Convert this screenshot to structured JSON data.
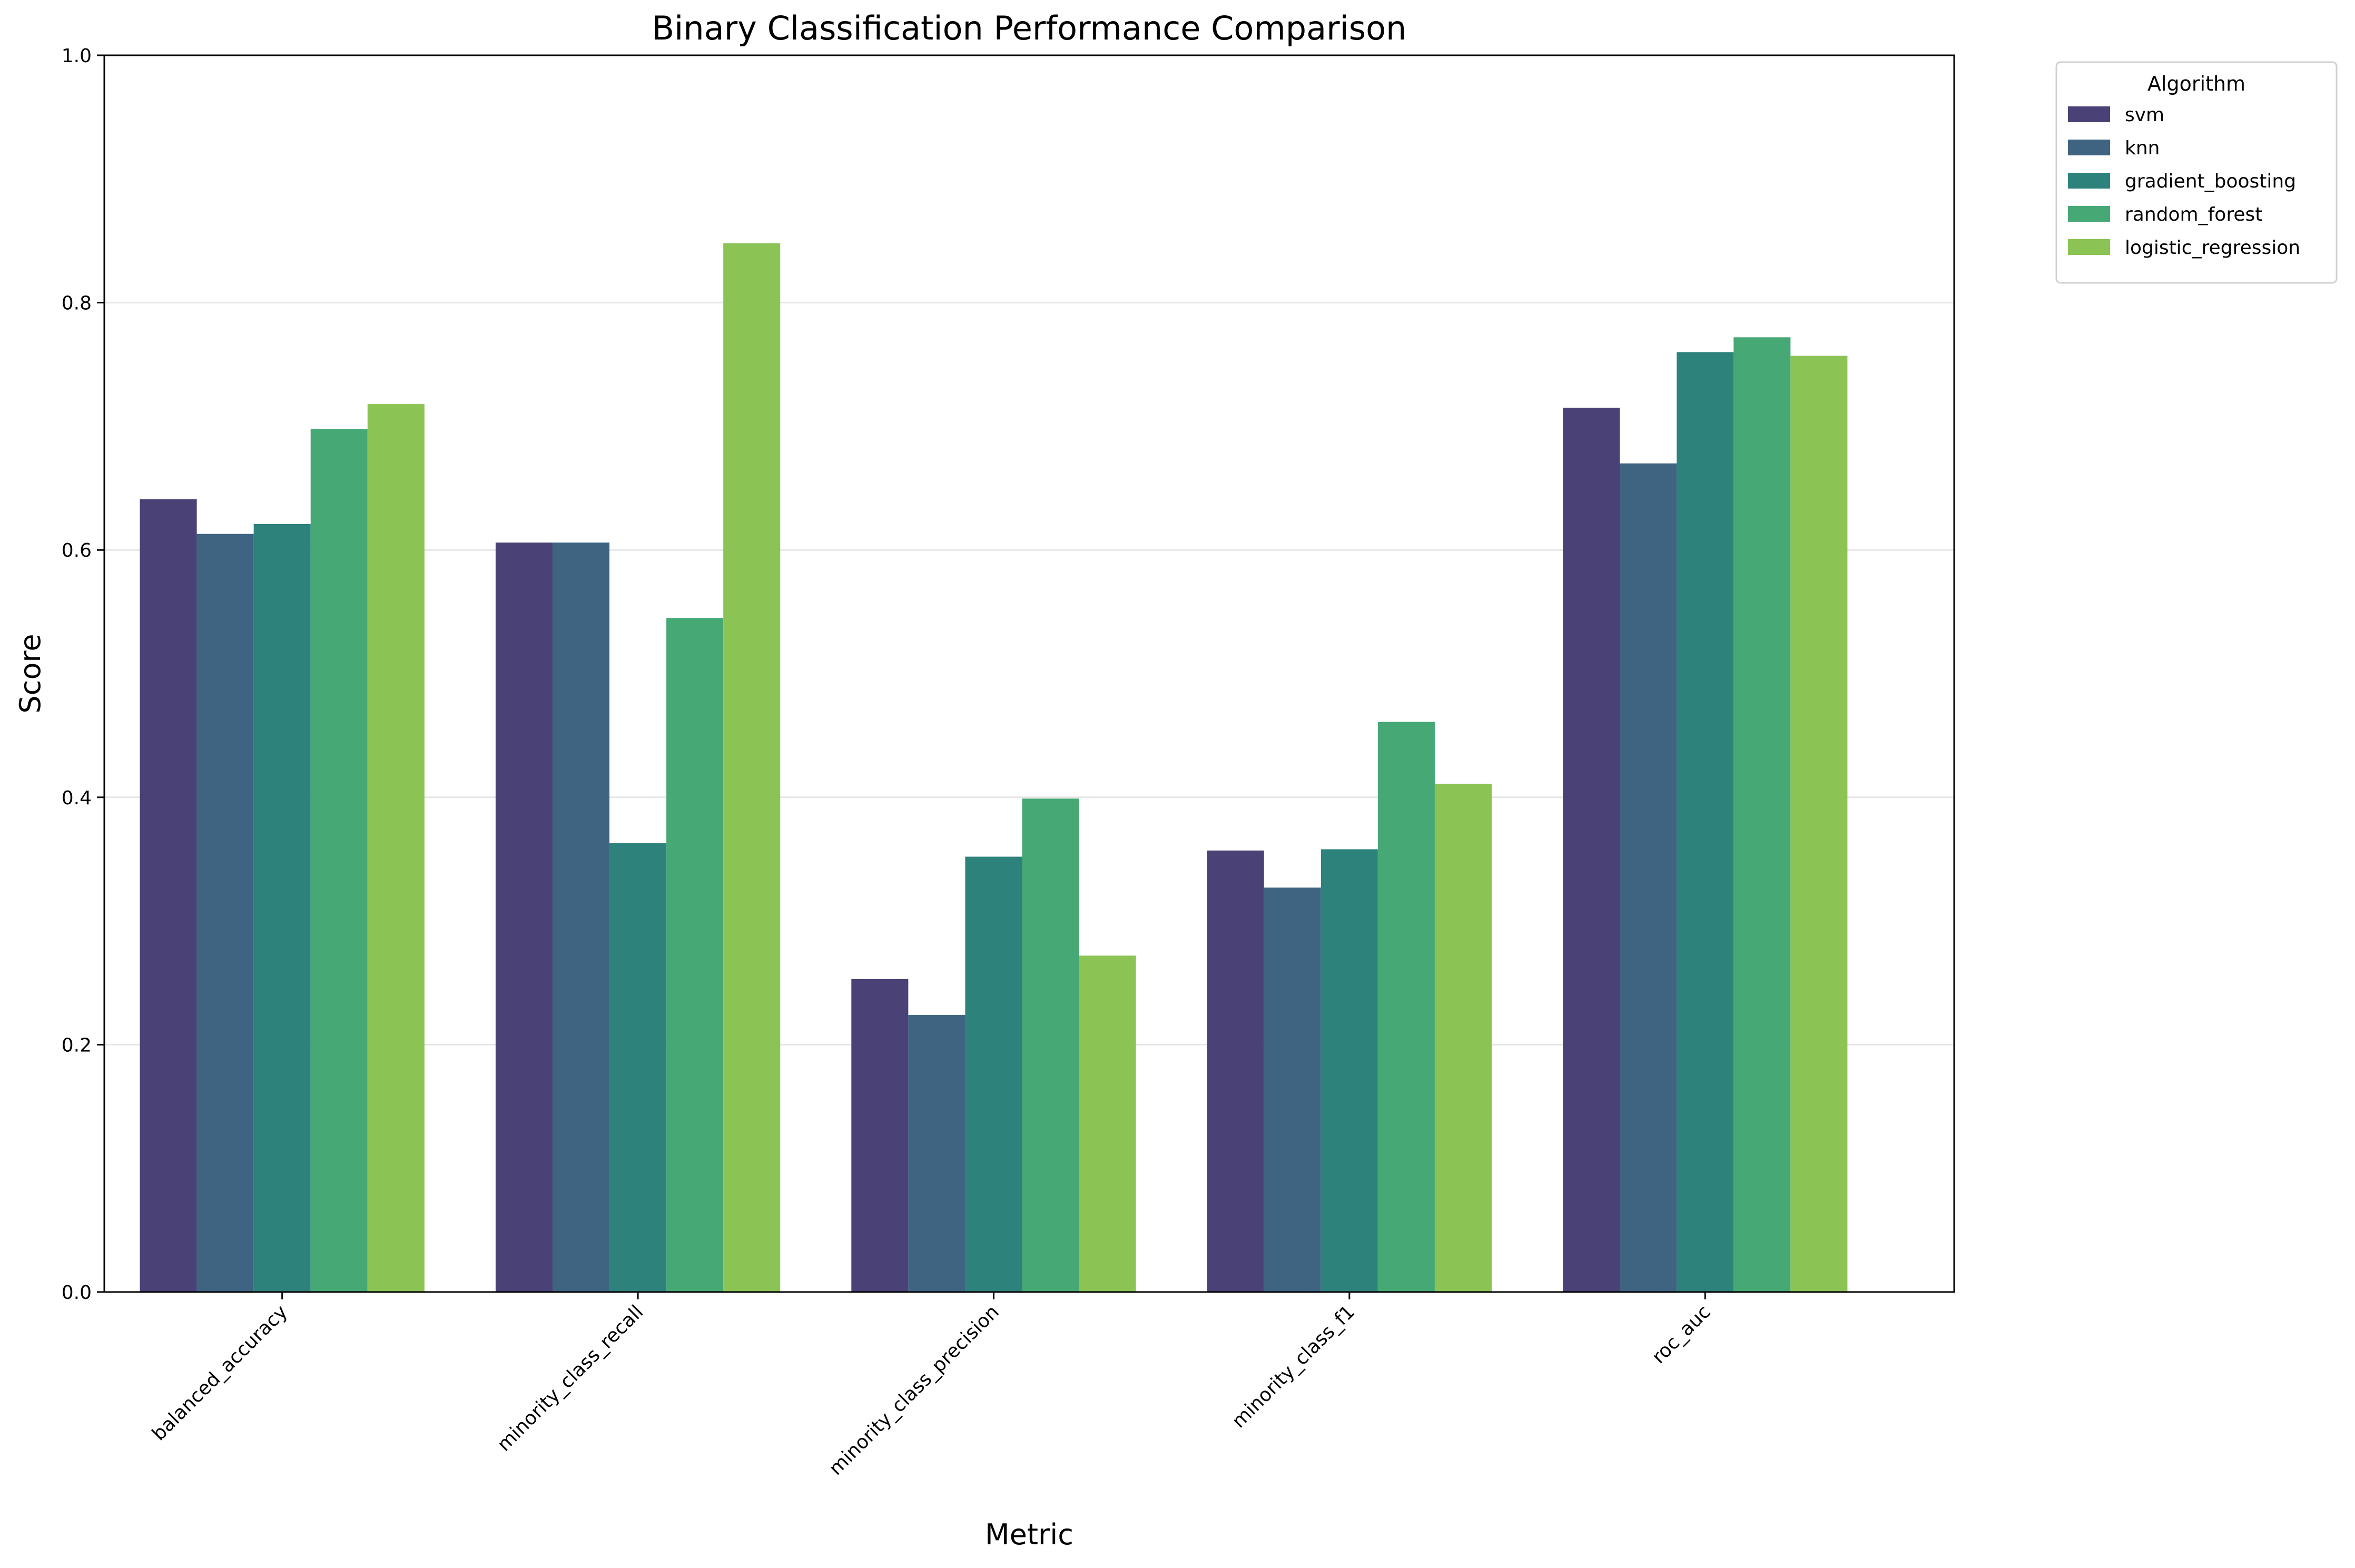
{
  "chart_data": {
    "type": "bar",
    "title": "Binary Classification Performance Comparison",
    "xlabel": "Metric",
    "ylabel": "Score",
    "ylim": [
      0,
      1.0
    ],
    "yticks": [
      "0.0",
      "0.2",
      "0.4",
      "0.6",
      "0.8",
      "1.0"
    ],
    "grid": "horizontal",
    "legend": {
      "title": "Algorithm",
      "placement": "outside top-right"
    },
    "categories": [
      "balanced_accuracy",
      "minority_class_recall",
      "minority_class_precision",
      "minority_class_f1",
      "roc_auc"
    ],
    "series": [
      {
        "name": "svm",
        "color": "#4a4177",
        "values": [
          0.641,
          0.606,
          0.253,
          0.357,
          0.715
        ]
      },
      {
        "name": "knn",
        "color": "#3e6482",
        "values": [
          0.613,
          0.606,
          0.224,
          0.327,
          0.67
        ]
      },
      {
        "name": "gradient_boosting",
        "color": "#2e827c",
        "values": [
          0.621,
          0.363,
          0.352,
          0.358,
          0.76
        ]
      },
      {
        "name": "random_forest",
        "color": "#46a874",
        "values": [
          0.698,
          0.545,
          0.399,
          0.461,
          0.772
        ]
      },
      {
        "name": "logistic_regression",
        "color": "#8cc355",
        "values": [
          0.718,
          0.848,
          0.272,
          0.411,
          0.757
        ]
      }
    ]
  }
}
